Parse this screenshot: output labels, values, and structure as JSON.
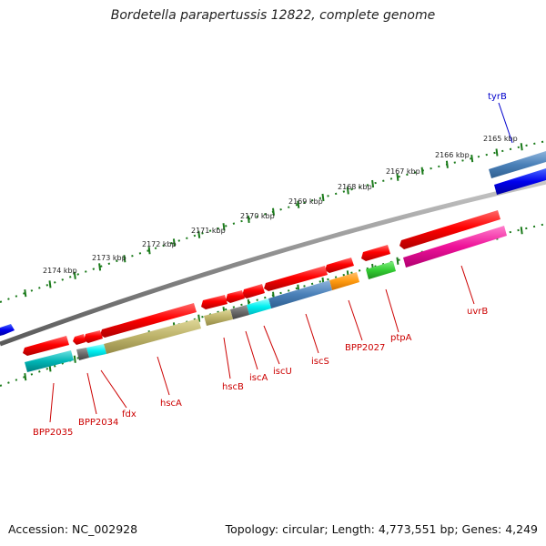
{
  "title": "Bordetella parapertussis 12822, complete genome",
  "footer": {
    "accession": "Accession: NC_002928",
    "topology": "Topology: circular; Length: 4,773,551 bp; Genes: 4,249"
  },
  "ticks": [
    "2165 kbp",
    "2166 kbp",
    "2167 kbp",
    "2168 kbp",
    "2169 kbp",
    "2170 kbp",
    "2171 kbp",
    "2172 kbp",
    "2173 kbp",
    "2174 kbp"
  ],
  "genes": [
    {
      "name": "tyrB",
      "color": "#0000cc"
    },
    {
      "name": "uvrB",
      "color": "#cc0000"
    },
    {
      "name": "ptpA",
      "color": "#cc0000"
    },
    {
      "name": "BPP2027",
      "color": "#cc0000"
    },
    {
      "name": "iscS",
      "color": "#cc0000"
    },
    {
      "name": "iscU",
      "color": "#cc0000"
    },
    {
      "name": "iscA",
      "color": "#cc0000"
    },
    {
      "name": "hscB",
      "color": "#cc0000"
    },
    {
      "name": "hscA",
      "color": "#cc0000"
    },
    {
      "name": "fdx",
      "color": "#cc0000"
    },
    {
      "name": "BPP2034",
      "color": "#cc0000"
    },
    {
      "name": "BPP2035",
      "color": "#cc0000"
    }
  ],
  "colors": {
    "forward_strand": "#ff0000",
    "backbone": "#888888",
    "tick": "#1a7a1a"
  }
}
